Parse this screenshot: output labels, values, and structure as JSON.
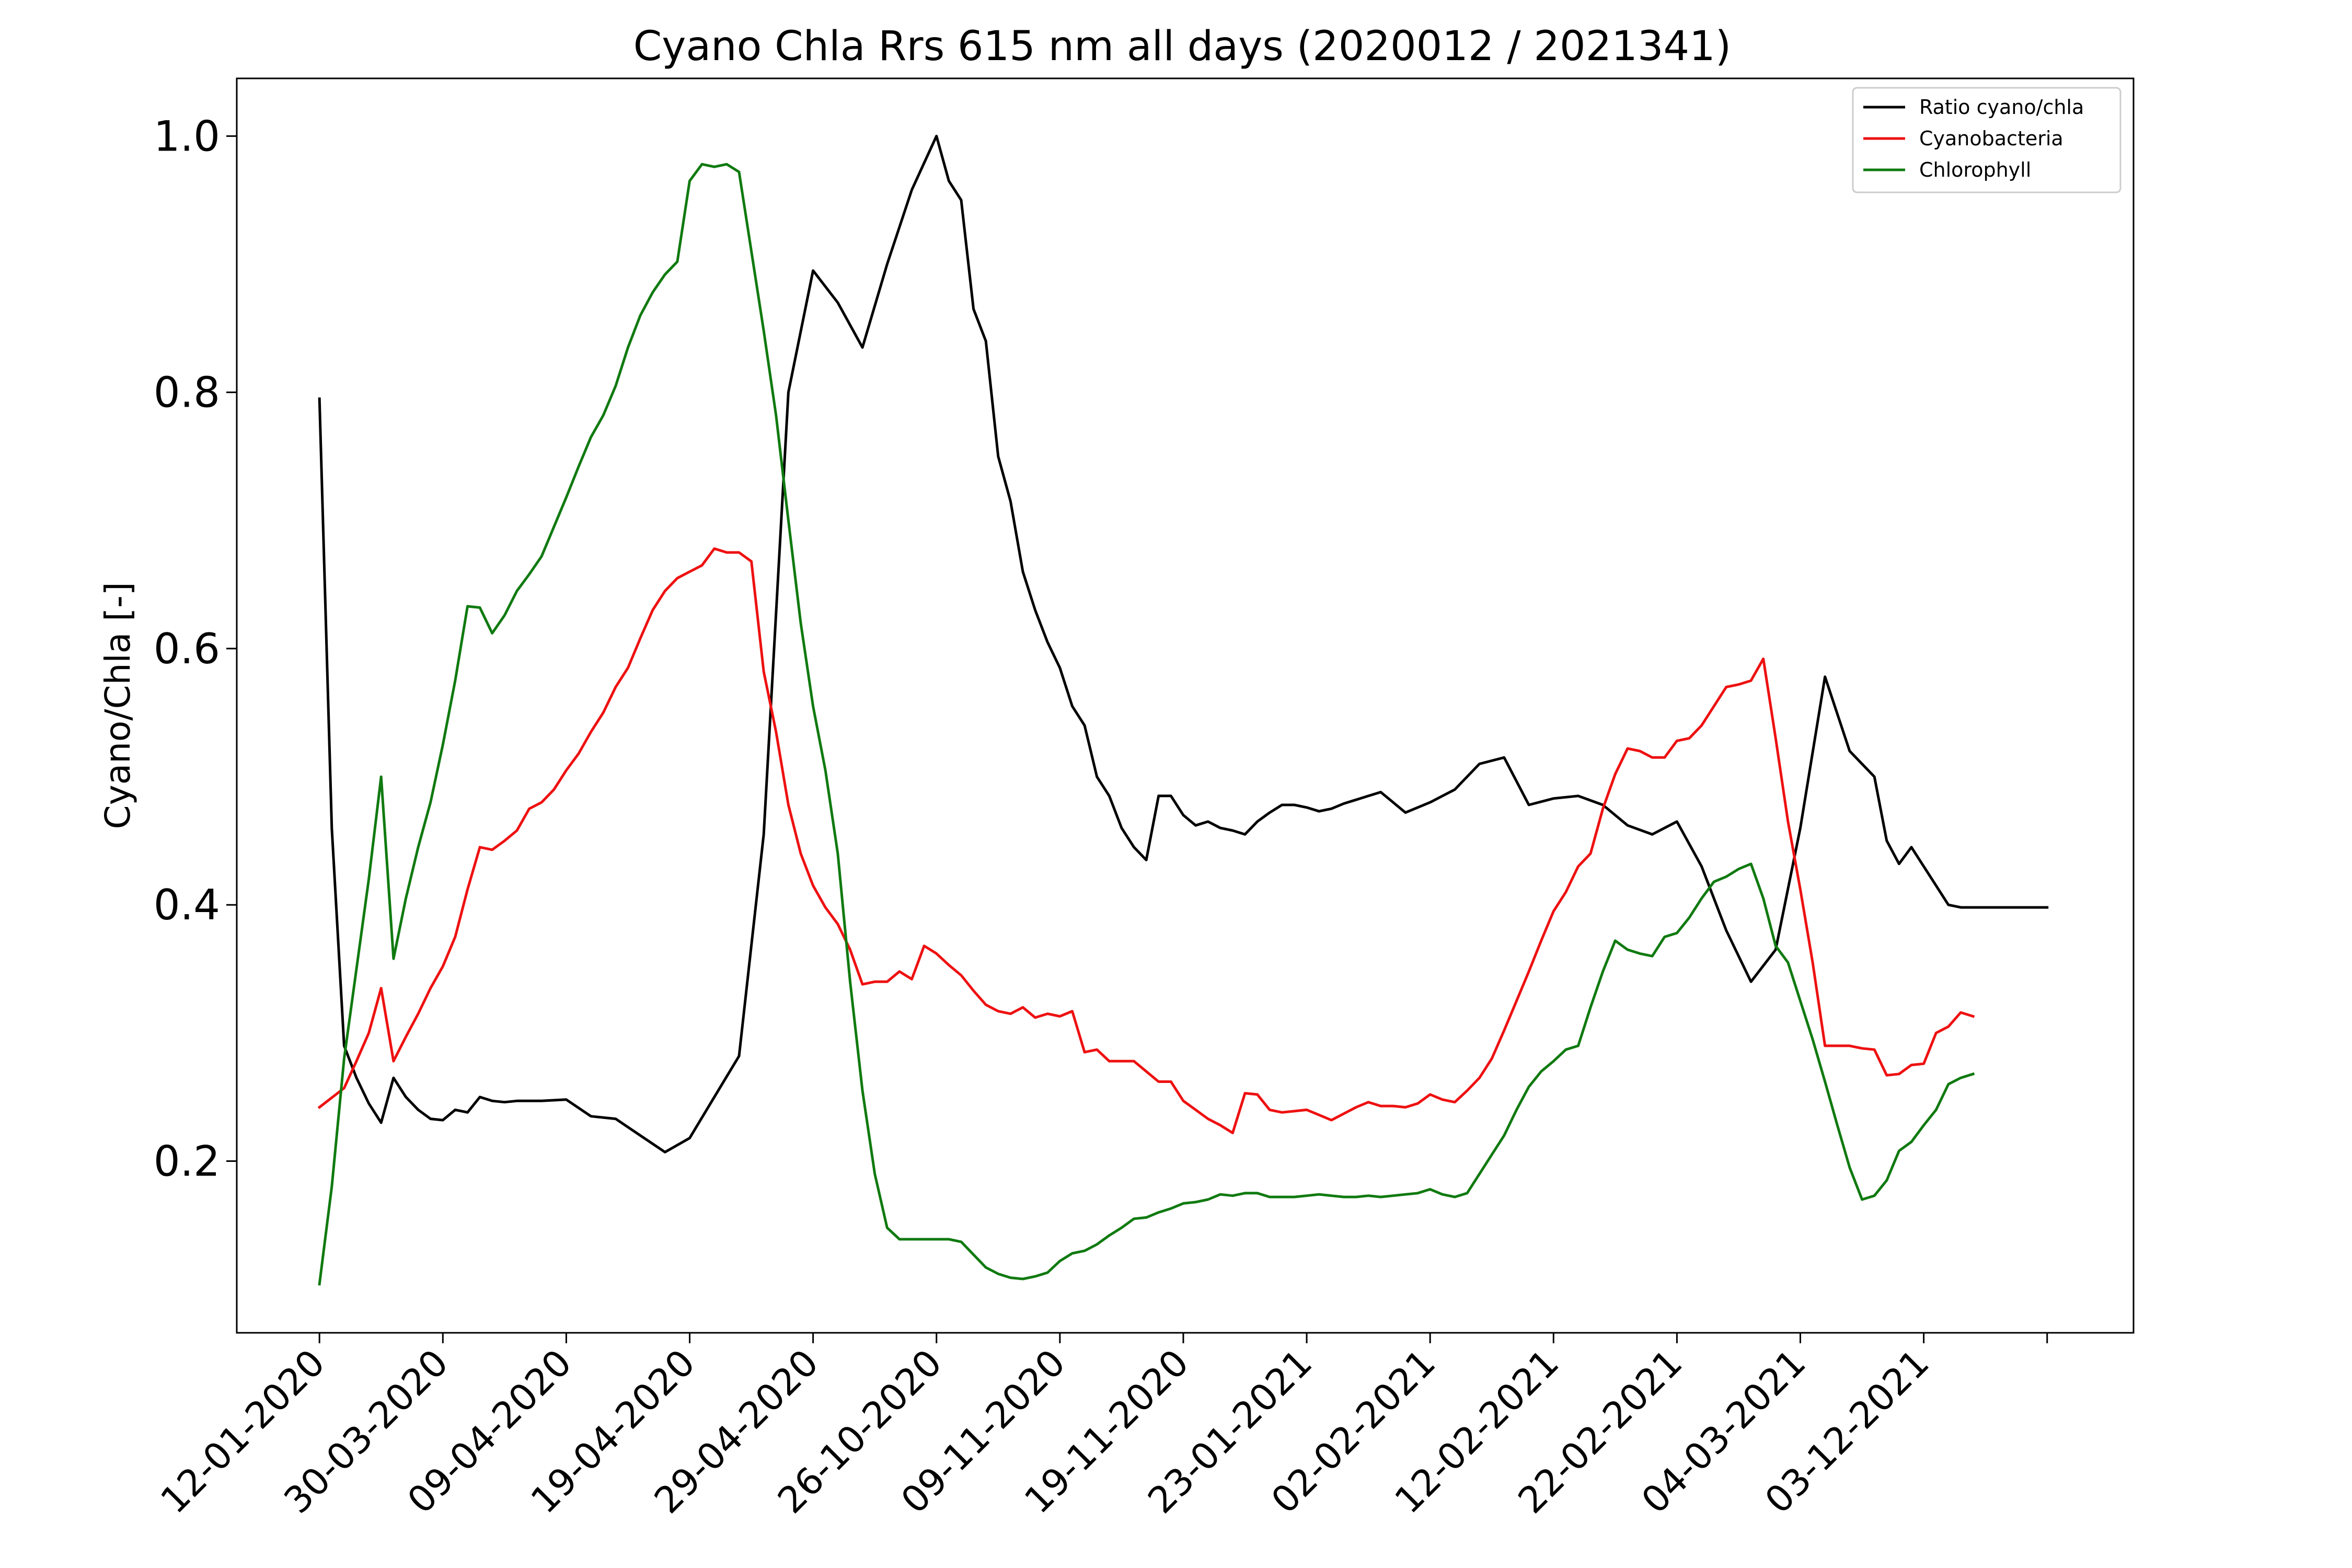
{
  "chart_data": {
    "type": "line",
    "title": "Cyano Chla Rrs 615 nm all days (2020012 / 2021341)",
    "xlabel": "",
    "ylabel": "Cyano/Chla [-]",
    "ylim": [
      0.066,
      1.045
    ],
    "yticks": [
      0.2,
      0.4,
      0.6,
      0.8,
      1.0
    ],
    "ytick_labels": [
      "0.2",
      "0.4",
      "0.6",
      "0.8",
      "1.0"
    ],
    "xtick_labels": [
      "12-01-2020",
      "30-03-2020",
      "09-04-2020",
      "19-04-2020",
      "29-04-2020",
      "26-10-2020",
      "09-11-2020",
      "19-11-2020",
      "23-01-2021",
      "02-02-2021",
      "12-02-2021",
      "22-02-2021",
      "04-03-2021",
      "03-12-2021",
      ""
    ],
    "xlim": [
      -0.67,
      14.7
    ],
    "grid": false,
    "legend": {
      "position": "top-right",
      "entries": [
        {
          "label": "Ratio cyano/chla",
          "color": "#000000"
        },
        {
          "label": "Cyanobacteria",
          "color": "#ee1111"
        },
        {
          "label": "Chlorophyll",
          "color": "#107a10"
        }
      ]
    },
    "series": [
      {
        "name": "Ratio cyano/chla",
        "color": "#000000",
        "x": [
          0,
          0.1,
          0.2,
          0.3,
          0.4,
          0.5,
          0.6,
          0.7,
          0.8,
          0.9,
          1.0,
          1.1,
          1.2,
          1.3,
          1.4,
          1.5,
          1.6,
          1.8,
          2.0,
          2.2,
          2.4,
          2.6,
          2.8,
          3.0,
          3.2,
          3.4,
          3.6,
          3.8,
          4.0,
          4.2,
          4.4,
          4.6,
          4.8,
          5.0,
          5.1,
          5.2,
          5.3,
          5.4,
          5.5,
          5.6,
          5.7,
          5.8,
          5.9,
          6.0,
          6.1,
          6.2,
          6.3,
          6.4,
          6.5,
          6.6,
          6.7,
          6.8,
          6.9,
          7.0,
          7.1,
          7.2,
          7.3,
          7.4,
          7.5,
          7.6,
          7.7,
          7.8,
          7.9,
          8.0,
          8.1,
          8.2,
          8.3,
          8.4,
          8.5,
          8.6,
          8.8,
          9.0,
          9.2,
          9.4,
          9.6,
          9.8,
          10.0,
          10.2,
          10.4,
          10.6,
          10.8,
          11.0,
          11.2,
          11.4,
          11.6,
          11.8,
          12.0,
          12.2,
          12.4,
          12.6,
          12.7,
          12.8,
          12.9,
          13.0,
          13.1,
          13.2,
          13.3,
          13.4,
          13.5,
          13.6,
          13.7,
          13.8,
          13.9,
          14.0
        ],
        "y": [
          0.795,
          0.46,
          0.29,
          0.265,
          0.245,
          0.23,
          0.265,
          0.25,
          0.24,
          0.233,
          0.232,
          0.24,
          0.238,
          0.25,
          0.247,
          0.246,
          0.247,
          0.247,
          0.248,
          0.235,
          0.233,
          0.22,
          0.207,
          0.218,
          0.25,
          0.282,
          0.455,
          0.8,
          0.895,
          0.87,
          0.835,
          0.9,
          0.958,
          1.0,
          0.965,
          0.95,
          0.865,
          0.84,
          0.75,
          0.715,
          0.66,
          0.63,
          0.605,
          0.585,
          0.555,
          0.54,
          0.5,
          0.485,
          0.46,
          0.445,
          0.435,
          0.485,
          0.485,
          0.47,
          0.462,
          0.465,
          0.46,
          0.458,
          0.455,
          0.465,
          0.472,
          0.478,
          0.478,
          0.476,
          0.473,
          0.475,
          0.479,
          0.482,
          0.485,
          0.488,
          0.472,
          0.48,
          0.49,
          0.51,
          0.515,
          0.478,
          0.483,
          0.485,
          0.478,
          0.462,
          0.455,
          0.465,
          0.43,
          0.38,
          0.34,
          0.365,
          0.46,
          0.578,
          0.52,
          0.5,
          0.45,
          0.432,
          0.445,
          0.43,
          0.415,
          0.4,
          0.398,
          0.398,
          0.398,
          0.398,
          0.398,
          0.398,
          0.398,
          0.398
        ],
        "render_until": 14.0
      },
      {
        "name": "Cyanobacteria",
        "color": "#ee1111",
        "x": [
          0,
          0.2,
          0.3,
          0.4,
          0.5,
          0.6,
          0.7,
          0.8,
          0.9,
          1.0,
          1.1,
          1.2,
          1.3,
          1.4,
          1.5,
          1.6,
          1.7,
          1.8,
          1.9,
          2.0,
          2.1,
          2.2,
          2.3,
          2.4,
          2.5,
          2.6,
          2.7,
          2.8,
          2.9,
          3.0,
          3.1,
          3.2,
          3.3,
          3.4,
          3.5,
          3.6,
          3.7,
          3.8,
          3.9,
          4.0,
          4.1,
          4.2,
          4.3,
          4.4,
          4.5,
          4.6,
          4.7,
          4.8,
          4.9,
          5.0,
          5.1,
          5.2,
          5.3,
          5.4,
          5.5,
          5.6,
          5.7,
          5.8,
          5.9,
          6.0,
          6.1,
          6.2,
          6.3,
          6.4,
          6.5,
          6.6,
          6.7,
          6.8,
          6.9,
          7.0,
          7.1,
          7.2,
          7.3,
          7.4,
          7.5,
          7.6,
          7.7,
          7.8,
          7.9,
          8.0,
          8.1,
          8.2,
          8.3,
          8.4,
          8.5,
          8.6,
          8.7,
          8.8,
          8.9,
          9.0,
          9.1,
          9.2,
          9.3,
          9.4,
          9.5,
          9.6,
          9.7,
          9.8,
          9.9,
          10.0,
          10.1,
          10.2,
          10.3,
          10.4,
          10.5,
          10.6,
          10.7,
          10.8,
          10.9,
          11.0,
          11.1,
          11.2,
          11.3,
          11.4,
          11.5,
          11.6,
          11.7,
          11.8,
          11.9,
          12.0,
          12.1,
          12.2,
          12.3,
          12.4,
          12.5,
          12.6,
          12.7,
          12.8,
          12.9,
          13.0,
          13.1,
          13.2,
          13.3,
          13.4,
          13.5
        ],
        "y": [
          0.242,
          0.257,
          0.278,
          0.3,
          0.335,
          0.278,
          0.297,
          0.315,
          0.335,
          0.352,
          0.375,
          0.412,
          0.445,
          0.443,
          0.45,
          0.458,
          0.475,
          0.48,
          0.49,
          0.505,
          0.518,
          0.535,
          0.55,
          0.57,
          0.585,
          0.608,
          0.63,
          0.645,
          0.655,
          0.66,
          0.665,
          0.678,
          0.675,
          0.675,
          0.668,
          0.582,
          0.535,
          0.478,
          0.44,
          0.415,
          0.398,
          0.385,
          0.365,
          0.338,
          0.34,
          0.34,
          0.348,
          0.342,
          0.368,
          0.362,
          0.353,
          0.345,
          0.333,
          0.322,
          0.317,
          0.315,
          0.32,
          0.312,
          0.315,
          0.313,
          0.317,
          0.285,
          0.287,
          0.278,
          0.278,
          0.278,
          0.27,
          0.262,
          0.262,
          0.247,
          0.24,
          0.233,
          0.228,
          0.222,
          0.253,
          0.252,
          0.24,
          0.238,
          0.239,
          0.24,
          0.236,
          0.232,
          0.237,
          0.242,
          0.246,
          0.243,
          0.243,
          0.242,
          0.245,
          0.252,
          0.248,
          0.246,
          0.255,
          0.265,
          0.28,
          0.302,
          0.325,
          0.348,
          0.372,
          0.395,
          0.41,
          0.43,
          0.44,
          0.475,
          0.502,
          0.522,
          0.52,
          0.515,
          0.515,
          0.528,
          0.53,
          0.54,
          0.555,
          0.57,
          0.572,
          0.575,
          0.592,
          0.53,
          0.465,
          0.412,
          0.355,
          0.29,
          0.29,
          0.29,
          0.288,
          0.287,
          0.267,
          0.268,
          0.275,
          0.276,
          0.3,
          0.305,
          0.316,
          0.313,
          0.313
        ],
        "render_until": 13.4
      },
      {
        "name": "Chlorophyll",
        "color": "#107a10",
        "x": [
          0,
          0.1,
          0.2,
          0.3,
          0.4,
          0.5,
          0.6,
          0.7,
          0.8,
          0.9,
          1.0,
          1.1,
          1.2,
          1.3,
          1.4,
          1.5,
          1.6,
          1.7,
          1.8,
          1.9,
          2.0,
          2.1,
          2.2,
          2.3,
          2.4,
          2.5,
          2.6,
          2.7,
          2.8,
          2.9,
          3.0,
          3.1,
          3.2,
          3.3,
          3.4,
          3.5,
          3.6,
          3.7,
          3.8,
          3.9,
          4.0,
          4.1,
          4.2,
          4.3,
          4.4,
          4.5,
          4.6,
          4.7,
          4.8,
          4.9,
          5.0,
          5.1,
          5.2,
          5.3,
          5.4,
          5.5,
          5.6,
          5.7,
          5.8,
          5.9,
          6.0,
          6.1,
          6.2,
          6.3,
          6.4,
          6.5,
          6.6,
          6.7,
          6.8,
          6.9,
          7.0,
          7.1,
          7.2,
          7.3,
          7.4,
          7.5,
          7.6,
          7.7,
          7.8,
          7.9,
          8.0,
          8.1,
          8.2,
          8.3,
          8.4,
          8.5,
          8.6,
          8.7,
          8.8,
          8.9,
          9.0,
          9.1,
          9.2,
          9.3,
          9.4,
          9.5,
          9.6,
          9.7,
          9.8,
          9.9,
          10.0,
          10.1,
          10.2,
          10.3,
          10.4,
          10.5,
          10.6,
          10.7,
          10.8,
          10.9,
          11.0,
          11.1,
          11.2,
          11.3,
          11.4,
          11.5,
          11.6,
          11.7,
          11.8,
          11.9,
          12.0,
          12.1,
          12.2,
          12.3,
          12.4,
          12.5,
          12.6,
          12.7,
          12.8,
          12.9,
          13.0,
          13.1,
          13.2,
          13.3,
          13.4
        ],
        "y": [
          0.104,
          0.18,
          0.28,
          0.35,
          0.42,
          0.5,
          0.358,
          0.405,
          0.445,
          0.48,
          0.525,
          0.575,
          0.633,
          0.632,
          0.612,
          0.626,
          0.645,
          0.658,
          0.672,
          0.695,
          0.718,
          0.742,
          0.765,
          0.782,
          0.805,
          0.835,
          0.86,
          0.878,
          0.892,
          0.902,
          0.965,
          0.978,
          0.976,
          0.978,
          0.972,
          0.91,
          0.848,
          0.782,
          0.7,
          0.62,
          0.555,
          0.505,
          0.44,
          0.34,
          0.255,
          0.19,
          0.148,
          0.139,
          0.139,
          0.139,
          0.139,
          0.139,
          0.137,
          0.127,
          0.117,
          0.112,
          0.109,
          0.108,
          0.11,
          0.113,
          0.122,
          0.128,
          0.13,
          0.135,
          0.142,
          0.148,
          0.155,
          0.156,
          0.16,
          0.163,
          0.167,
          0.168,
          0.17,
          0.174,
          0.173,
          0.175,
          0.175,
          0.172,
          0.172,
          0.172,
          0.173,
          0.174,
          0.173,
          0.172,
          0.172,
          0.173,
          0.172,
          0.173,
          0.174,
          0.175,
          0.178,
          0.174,
          0.172,
          0.175,
          0.19,
          0.205,
          0.22,
          0.24,
          0.258,
          0.27,
          0.278,
          0.287,
          0.29,
          0.32,
          0.348,
          0.372,
          0.365,
          0.362,
          0.36,
          0.375,
          0.378,
          0.39,
          0.405,
          0.418,
          0.422,
          0.428,
          0.432,
          0.405,
          0.368,
          0.355,
          0.325,
          0.295,
          0.262,
          0.228,
          0.195,
          0.17,
          0.173,
          0.185,
          0.208,
          0.215,
          0.228,
          0.24,
          0.26,
          0.265,
          0.268
        ],
        "render_until": 13.4
      }
    ]
  }
}
